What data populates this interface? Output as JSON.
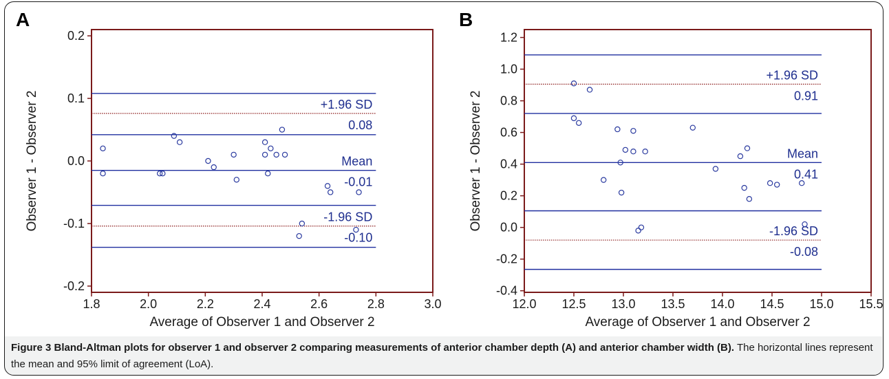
{
  "chart_data": [
    {
      "panel_label": "A",
      "type": "scatter",
      "xlabel": "Average of Observer 1 and Observer 2",
      "ylabel": "Observer 1 - Observer 2",
      "xlim": [
        1.8,
        3.0
      ],
      "ylim": [
        -0.21,
        0.21
      ],
      "xticks": [
        1.8,
        2.0,
        2.2,
        2.4,
        2.6,
        2.8,
        3.0
      ],
      "xtick_labels": [
        "1.8",
        "2.0",
        "2.2",
        "2.4",
        "2.6",
        "2.8",
        "3.0"
      ],
      "yticks": [
        -0.2,
        -0.1,
        0.0,
        0.1,
        0.2
      ],
      "ytick_labels": [
        "-0.2",
        "-0.1",
        "0.0",
        "0.1",
        "0.2"
      ],
      "points": [
        [
          1.84,
          0.02
        ],
        [
          1.84,
          -0.02
        ],
        [
          2.04,
          -0.02
        ],
        [
          2.05,
          -0.02
        ],
        [
          2.09,
          0.04
        ],
        [
          2.11,
          0.03
        ],
        [
          2.21,
          0.0
        ],
        [
          2.23,
          -0.01
        ],
        [
          2.3,
          0.01
        ],
        [
          2.31,
          -0.03
        ],
        [
          2.41,
          0.03
        ],
        [
          2.41,
          0.01
        ],
        [
          2.42,
          -0.02
        ],
        [
          2.43,
          0.02
        ],
        [
          2.45,
          0.01
        ],
        [
          2.47,
          0.05
        ],
        [
          2.48,
          0.01
        ],
        [
          2.53,
          -0.12
        ],
        [
          2.54,
          -0.1
        ],
        [
          2.63,
          -0.04
        ],
        [
          2.64,
          -0.05
        ],
        [
          2.73,
          -0.11
        ],
        [
          2.74,
          -0.05
        ]
      ],
      "hlines": [
        {
          "y": 0.108,
          "style": "solid",
          "color": "#1f2f9f"
        },
        {
          "y": 0.076,
          "style": "dotted",
          "color": "#8b1a1a",
          "label_above": "+1.96 SD",
          "label_below": "0.08"
        },
        {
          "y": 0.042,
          "style": "solid",
          "color": "#1f2f9f"
        },
        {
          "y": -0.015,
          "style": "solid",
          "color": "#1f2f9f",
          "label_above": "Mean",
          "label_below": "-0.01"
        },
        {
          "y": -0.071,
          "style": "solid",
          "color": "#1f2f9f"
        },
        {
          "y": -0.104,
          "style": "dotted",
          "color": "#8b1a1a",
          "label_above": "-1.96 SD",
          "label_below": "-0.10"
        },
        {
          "y": -0.138,
          "style": "solid",
          "color": "#1f2f9f"
        }
      ],
      "line_x_range": [
        1.8,
        2.8
      ]
    },
    {
      "panel_label": "B",
      "type": "scatter",
      "xlabel": "Average of Observer 1 and Observer 2",
      "ylabel": "Observer 1 - Observer 2",
      "xlim": [
        12.0,
        15.5
      ],
      "ylim": [
        -0.41,
        1.25
      ],
      "xticks": [
        12.0,
        12.5,
        13.0,
        13.5,
        14.0,
        14.5,
        15.0,
        15.5
      ],
      "xtick_labels": [
        "12.0",
        "12.5",
        "13.0",
        "13.5",
        "14.0",
        "14.5",
        "15.0",
        "15.5"
      ],
      "yticks": [
        -0.4,
        -0.2,
        0.0,
        0.2,
        0.4,
        0.6,
        0.8,
        1.0,
        1.2
      ],
      "ytick_labels": [
        "-0.4",
        "-0.2",
        "0.0",
        "0.2",
        "0.4",
        "0.6",
        "0.8",
        "1.0",
        "1.2"
      ],
      "points": [
        [
          12.5,
          0.91
        ],
        [
          12.66,
          0.87
        ],
        [
          12.5,
          0.69
        ],
        [
          12.55,
          0.66
        ],
        [
          12.8,
          0.3
        ],
        [
          12.94,
          0.62
        ],
        [
          12.97,
          0.41
        ],
        [
          12.98,
          0.22
        ],
        [
          13.02,
          0.49
        ],
        [
          13.1,
          0.61
        ],
        [
          13.1,
          0.48
        ],
        [
          13.15,
          -0.02
        ],
        [
          13.18,
          0.0
        ],
        [
          13.22,
          0.48
        ],
        [
          13.7,
          0.63
        ],
        [
          13.93,
          0.37
        ],
        [
          14.18,
          0.45
        ],
        [
          14.22,
          0.25
        ],
        [
          14.25,
          0.5
        ],
        [
          14.27,
          0.18
        ],
        [
          14.48,
          0.28
        ],
        [
          14.55,
          0.27
        ],
        [
          14.8,
          0.28
        ],
        [
          14.83,
          0.02
        ]
      ],
      "hlines": [
        {
          "y": 1.09,
          "style": "solid",
          "color": "#1f2f9f"
        },
        {
          "y": 0.905,
          "style": "dotted",
          "color": "#8b1a1a",
          "label_above": "+1.96 SD",
          "label_below": "0.91"
        },
        {
          "y": 0.72,
          "style": "solid",
          "color": "#1f2f9f"
        },
        {
          "y": 0.41,
          "style": "solid",
          "color": "#1f2f9f",
          "label_above": "Mean",
          "label_below": "0.41"
        },
        {
          "y": 0.105,
          "style": "solid",
          "color": "#1f2f9f"
        },
        {
          "y": -0.08,
          "style": "dotted",
          "color": "#8b1a1a",
          "label_above": "-1.96 SD",
          "label_below": "-0.08"
        },
        {
          "y": -0.265,
          "style": "solid",
          "color": "#1f2f9f"
        }
      ],
      "line_x_range": [
        12.0,
        15.0
      ]
    }
  ],
  "caption": {
    "bold": "Figure 3 Bland-Altman plots for observer 1 and observer 2 comparing measurements of anterior chamber depth (A) and anterior chamber width (B).",
    "rest": " The horizontal lines represent the mean and 95% limit of agreement (LoA)."
  },
  "colors": {
    "axis": "#7a1a1a",
    "line": "#1f2f9f",
    "dotted": "#8b1a1a",
    "point": "#2a3a9f",
    "label": "#1f2f8f",
    "tick_text": "#1a1a1a"
  }
}
